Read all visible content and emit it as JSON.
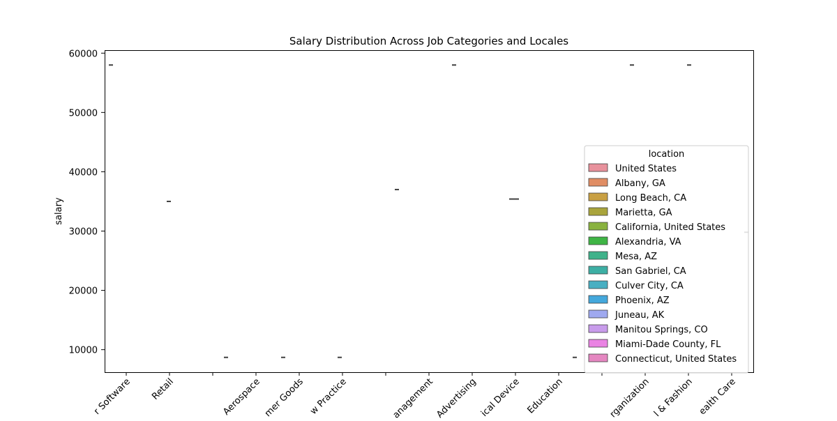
{
  "chart_data": {
    "type": "box",
    "title": "Salary Distribution Across Job Categories and Locales",
    "xlabel": "",
    "ylabel": "salary",
    "ylim": [
      6200,
      60500
    ],
    "yticks": [
      10000,
      20000,
      30000,
      40000,
      50000,
      60000
    ],
    "grid": false,
    "categories": [
      "Computer Software",
      "Retail",
      "",
      "Aerospace",
      "Consumer Goods",
      "Law Practice",
      "",
      "Management",
      "Advertising",
      "Medical Device",
      "Education",
      "",
      "Organization",
      "Apparel & Fashion",
      "Health Care"
    ],
    "x_tick_labels_visible": [
      "r Software",
      "Retail",
      "Aerospace",
      "mer Goods",
      "w Practice",
      "anagement",
      "Advertising",
      "ical Device",
      "Education",
      "rganization",
      "l & Fashion",
      "ealth Care"
    ],
    "legend": {
      "title": "location",
      "placement": "center-right",
      "entries": [
        {
          "name": "United States",
          "color": "#e8919c"
        },
        {
          "name": "Albany, GA",
          "color": "#e08d64"
        },
        {
          "name": "Long Beach, CA",
          "color": "#c9a043"
        },
        {
          "name": "Marietta, GA",
          "color": "#a9a43c"
        },
        {
          "name": "California, United States",
          "color": "#89b23f"
        },
        {
          "name": "Alexandria, VA",
          "color": "#3fb545"
        },
        {
          "name": "Mesa, AZ",
          "color": "#3fb28a"
        },
        {
          "name": "San Gabriel, CA",
          "color": "#3dafa4"
        },
        {
          "name": "Culver City, CA",
          "color": "#48afc2"
        },
        {
          "name": "Phoenix, AZ",
          "color": "#44a8dc"
        },
        {
          "name": "Juneau, AK",
          "color": "#9fa9ef"
        },
        {
          "name": "Manitou Springs, CO",
          "color": "#c89ceb"
        },
        {
          "name": "Miami-Dade County, FL",
          "color": "#ea83e3"
        },
        {
          "name": "Connecticut, United States",
          "color": "#e587c1"
        }
      ]
    },
    "boxes": [
      {
        "category": "Computer Software",
        "location": "United States",
        "value": 58000
      },
      {
        "category": "Retail",
        "location": "United States",
        "value": 35000
      },
      {
        "category": "Aerospace",
        "location": "United States",
        "value": 8700
      },
      {
        "category": "Consumer Goods",
        "location": "United States",
        "value": 8700
      },
      {
        "category": "Law Practice",
        "location": "United States",
        "value": 8700
      },
      {
        "category": "Management",
        "location": "United States",
        "value": 37000
      },
      {
        "category": "Advertising",
        "location": "United States",
        "value": 58000
      },
      {
        "category": "Medical Device",
        "location": "United States",
        "value": 35400
      },
      {
        "category": "Education",
        "location": "United States",
        "value": 8700
      },
      {
        "category": "Organization",
        "location": "United States",
        "value": 58000
      },
      {
        "category": "Apparel & Fashion",
        "location": "United States",
        "value": 58000
      },
      {
        "category": "Health Care",
        "location": "United States",
        "value": 29800
      }
    ]
  }
}
